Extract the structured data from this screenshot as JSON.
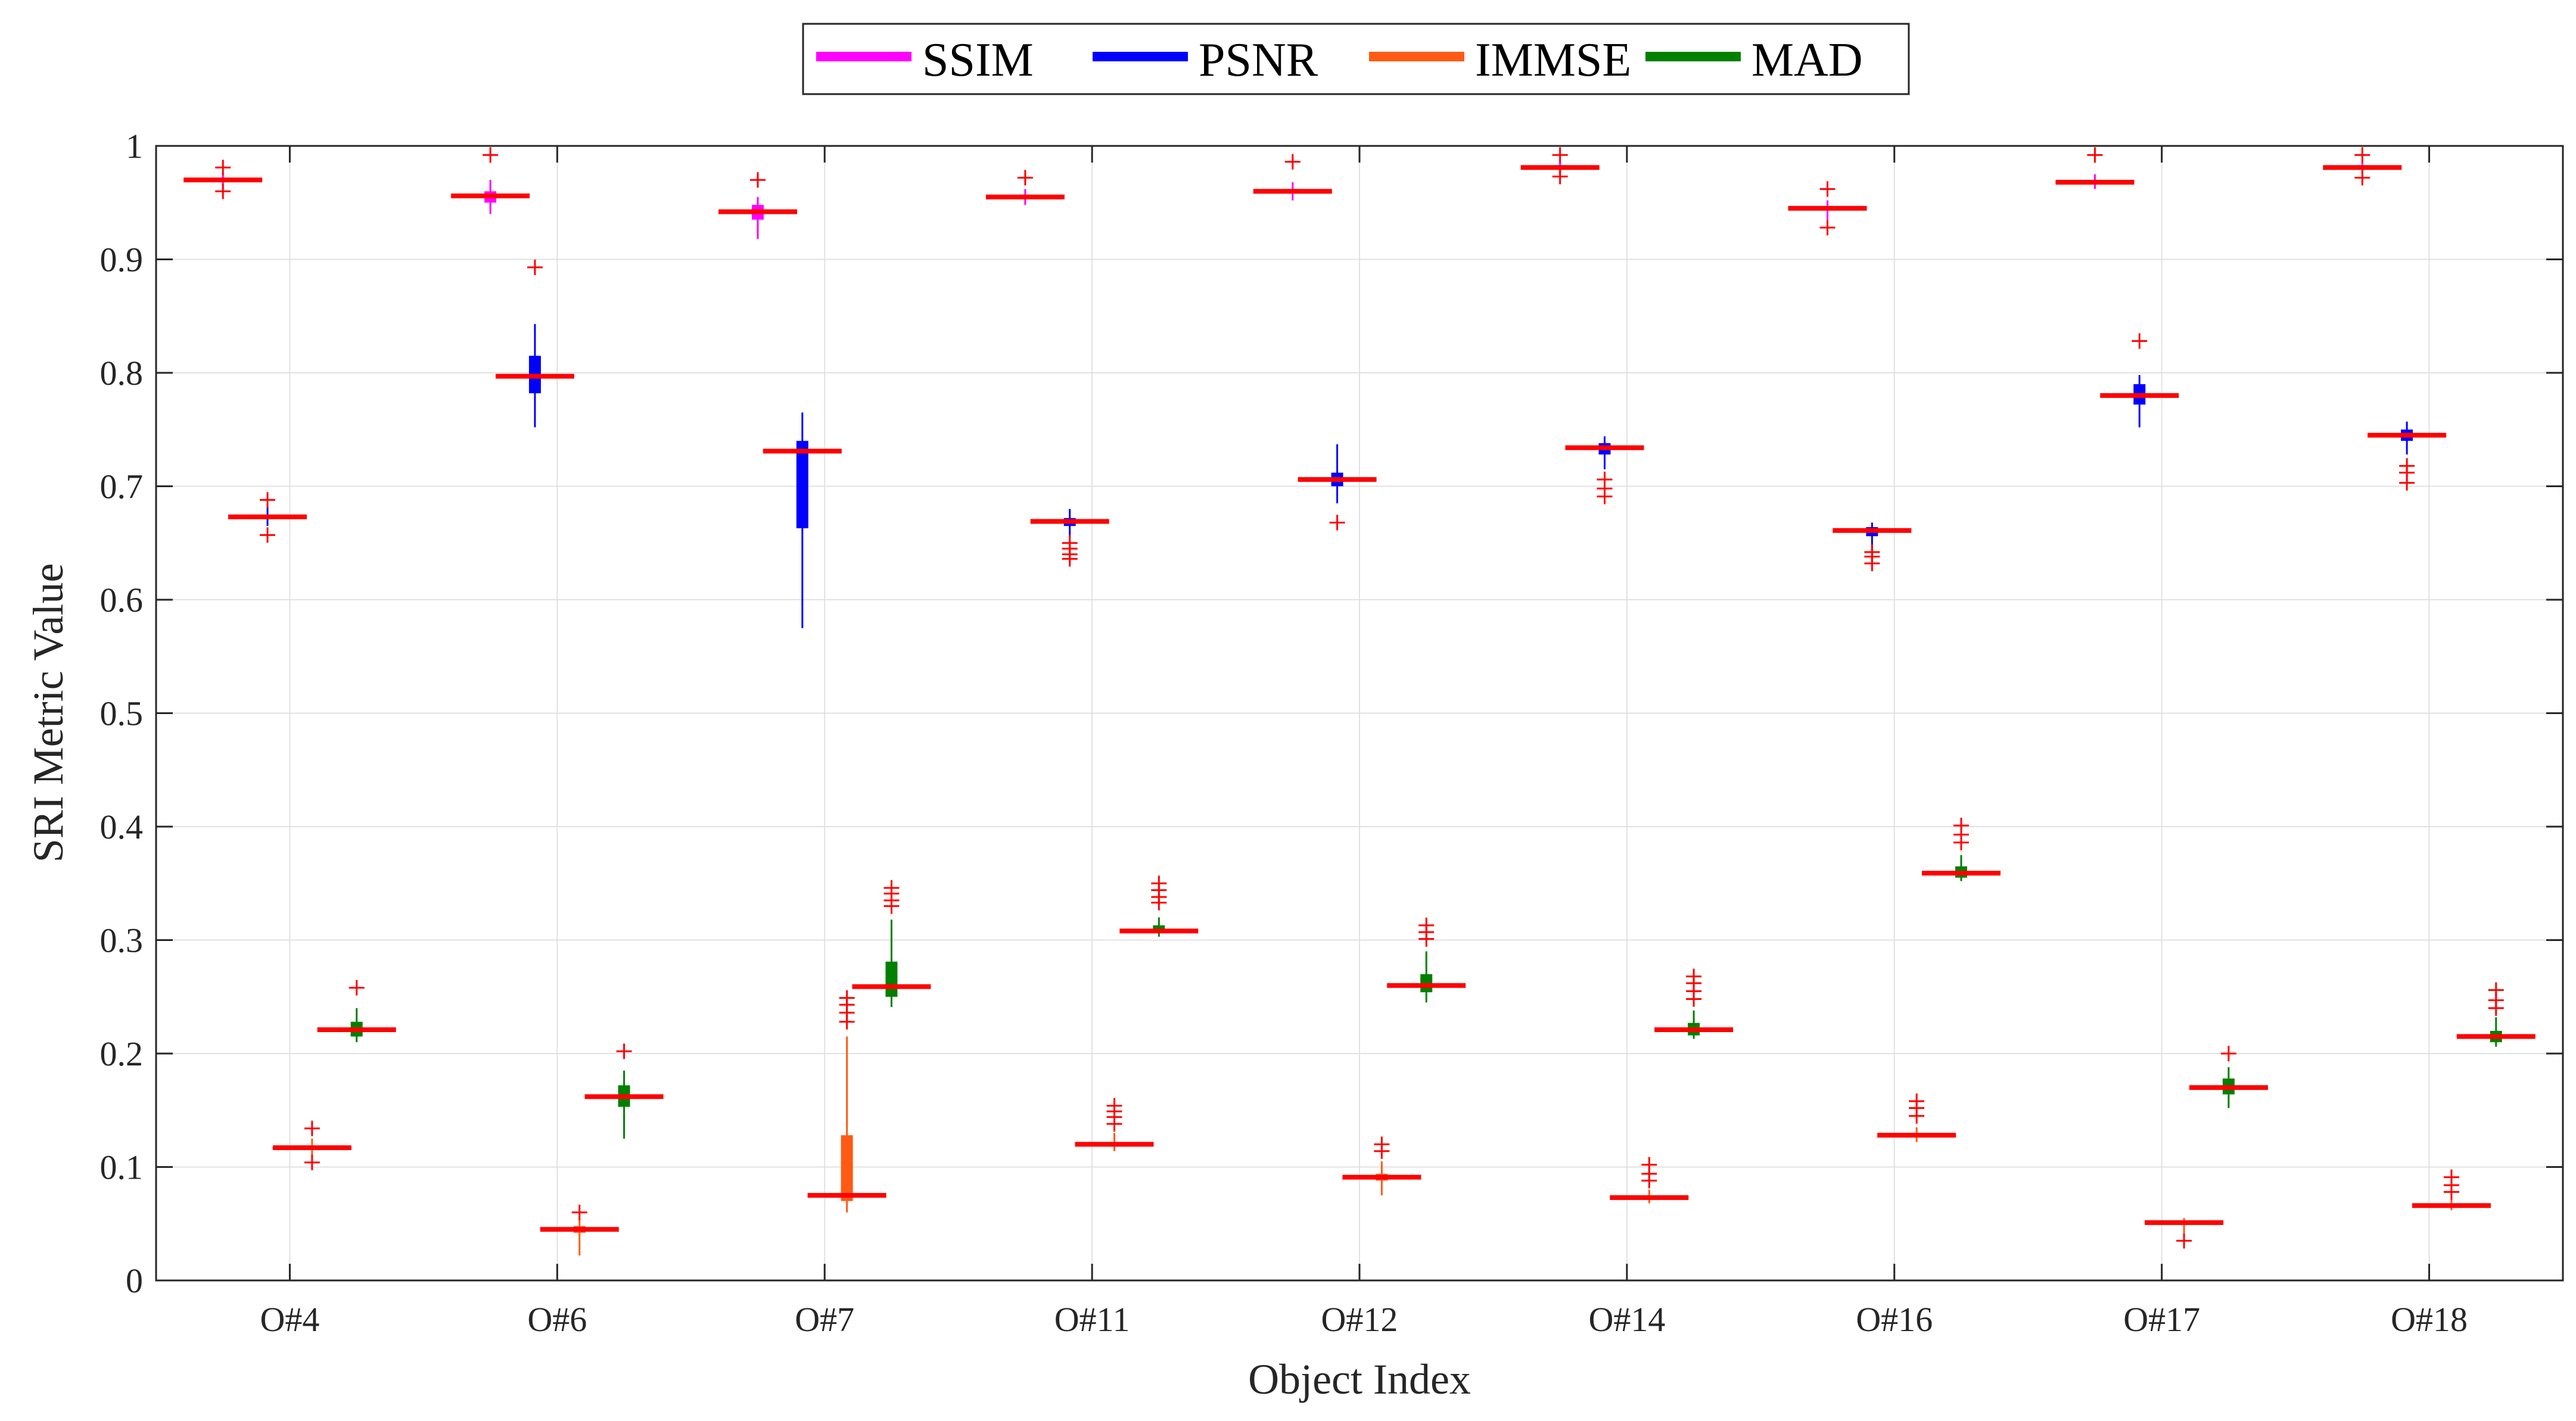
{
  "chart_data": {
    "type": "box",
    "title": "",
    "xlabel": "Object Index",
    "ylabel": "SRI Metric Value",
    "ylim": [
      0,
      1
    ],
    "yticks": [
      0,
      0.1,
      0.2,
      0.3,
      0.4,
      0.5,
      0.6,
      0.7,
      0.8,
      0.9,
      1
    ],
    "ytick_labels": [
      "0",
      "0.1",
      "0.2",
      "0.3",
      "0.4",
      "0.5",
      "0.6",
      "0.7",
      "0.8",
      "0.9",
      "1"
    ],
    "grid": true,
    "legend_position": "top-center",
    "median_color": "#ff0000",
    "outlier_color": "#ff0000",
    "categories": [
      "O#4",
      "O#6",
      "O#7",
      "O#11",
      "O#12",
      "O#14",
      "O#16",
      "O#17",
      "O#18"
    ],
    "series": [
      {
        "name": "SSIM",
        "color": "#ff00ff",
        "boxes": [
          {
            "median": 0.97,
            "q1": 0.968,
            "q3": 0.972,
            "whisker_low": 0.962,
            "whisker_high": 0.976,
            "outliers": [
              0.981,
              0.96
            ]
          },
          {
            "median": 0.956,
            "q1": 0.95,
            "q3": 0.96,
            "whisker_low": 0.94,
            "whisker_high": 0.97,
            "outliers": [
              0.992
            ]
          },
          {
            "median": 0.942,
            "q1": 0.935,
            "q3": 0.948,
            "whisker_low": 0.918,
            "whisker_high": 0.955,
            "outliers": [
              0.97
            ]
          },
          {
            "median": 0.955,
            "q1": 0.953,
            "q3": 0.957,
            "whisker_low": 0.948,
            "whisker_high": 0.962,
            "outliers": [
              0.972
            ]
          },
          {
            "median": 0.96,
            "q1": 0.958,
            "q3": 0.962,
            "whisker_low": 0.952,
            "whisker_high": 0.968,
            "outliers": [
              0.986
            ]
          },
          {
            "median": 0.981,
            "q1": 0.979,
            "q3": 0.983,
            "whisker_low": 0.975,
            "whisker_high": 0.986,
            "outliers": [
              0.992,
              0.973
            ]
          },
          {
            "median": 0.945,
            "q1": 0.943,
            "q3": 0.947,
            "whisker_low": 0.935,
            "whisker_high": 0.952,
            "outliers": [
              0.962,
              0.928
            ]
          },
          {
            "median": 0.968,
            "q1": 0.966,
            "q3": 0.97,
            "whisker_low": 0.962,
            "whisker_high": 0.975,
            "outliers": [
              0.992
            ]
          },
          {
            "median": 0.981,
            "q1": 0.979,
            "q3": 0.983,
            "whisker_low": 0.976,
            "whisker_high": 0.986,
            "outliers": [
              0.992,
              0.972
            ]
          }
        ]
      },
      {
        "name": "PSNR",
        "color": "#0000ff",
        "boxes": [
          {
            "median": 0.673,
            "q1": 0.671,
            "q3": 0.675,
            "whisker_low": 0.665,
            "whisker_high": 0.682,
            "outliers": [
              0.688,
              0.657
            ]
          },
          {
            "median": 0.797,
            "q1": 0.782,
            "q3": 0.815,
            "whisker_low": 0.752,
            "whisker_high": 0.843,
            "outliers": [
              0.893
            ]
          },
          {
            "median": 0.731,
            "q1": 0.663,
            "q3": 0.74,
            "whisker_low": 0.575,
            "whisker_high": 0.765,
            "outliers": []
          },
          {
            "median": 0.669,
            "q1": 0.665,
            "q3": 0.672,
            "whisker_low": 0.655,
            "whisker_high": 0.68,
            "outliers": [
              0.65,
              0.645,
              0.64,
              0.636
            ]
          },
          {
            "median": 0.706,
            "q1": 0.7,
            "q3": 0.712,
            "whisker_low": 0.685,
            "whisker_high": 0.737,
            "outliers": [
              0.668
            ]
          },
          {
            "median": 0.734,
            "q1": 0.728,
            "q3": 0.738,
            "whisker_low": 0.715,
            "whisker_high": 0.744,
            "outliers": [
              0.706,
              0.698,
              0.691
            ]
          },
          {
            "median": 0.661,
            "q1": 0.656,
            "q3": 0.664,
            "whisker_low": 0.645,
            "whisker_high": 0.668,
            "outliers": [
              0.642,
              0.638,
              0.632
            ]
          },
          {
            "median": 0.78,
            "q1": 0.772,
            "q3": 0.79,
            "whisker_low": 0.752,
            "whisker_high": 0.798,
            "outliers": [
              0.828
            ]
          },
          {
            "median": 0.745,
            "q1": 0.74,
            "q3": 0.75,
            "whisker_low": 0.728,
            "whisker_high": 0.757,
            "outliers": [
              0.718,
              0.712,
              0.703
            ]
          }
        ]
      },
      {
        "name": "IMMSE",
        "color": "#ff5a14",
        "boxes": [
          {
            "median": 0.117,
            "q1": 0.115,
            "q3": 0.119,
            "whisker_low": 0.11,
            "whisker_high": 0.125,
            "outliers": [
              0.134,
              0.104
            ]
          },
          {
            "median": 0.045,
            "q1": 0.042,
            "q3": 0.048,
            "whisker_low": 0.022,
            "whisker_high": 0.055,
            "outliers": [
              0.06
            ]
          },
          {
            "median": 0.075,
            "q1": 0.07,
            "q3": 0.128,
            "whisker_low": 0.06,
            "whisker_high": 0.215,
            "outliers": [
              0.228,
              0.236,
              0.243,
              0.249
            ]
          },
          {
            "median": 0.12,
            "q1": 0.118,
            "q3": 0.122,
            "whisker_low": 0.114,
            "whisker_high": 0.13,
            "outliers": [
              0.138,
              0.144,
              0.149,
              0.154
            ]
          },
          {
            "median": 0.091,
            "q1": 0.088,
            "q3": 0.094,
            "whisker_low": 0.075,
            "whisker_high": 0.105,
            "outliers": [
              0.114,
              0.12
            ]
          },
          {
            "median": 0.073,
            "q1": 0.071,
            "q3": 0.075,
            "whisker_low": 0.068,
            "whisker_high": 0.08,
            "outliers": [
              0.088,
              0.094,
              0.102
            ]
          },
          {
            "median": 0.128,
            "q1": 0.126,
            "q3": 0.13,
            "whisker_low": 0.122,
            "whisker_high": 0.135,
            "outliers": [
              0.145,
              0.152,
              0.158
            ]
          },
          {
            "median": 0.051,
            "q1": 0.049,
            "q3": 0.053,
            "whisker_low": 0.042,
            "whisker_high": 0.055,
            "outliers": [
              0.035
            ]
          },
          {
            "median": 0.066,
            "q1": 0.064,
            "q3": 0.068,
            "whisker_low": 0.062,
            "whisker_high": 0.072,
            "outliers": [
              0.078,
              0.084,
              0.091
            ]
          }
        ]
      },
      {
        "name": "MAD",
        "color": "#008000",
        "boxes": [
          {
            "median": 0.221,
            "q1": 0.215,
            "q3": 0.228,
            "whisker_low": 0.21,
            "whisker_high": 0.24,
            "outliers": [
              0.258
            ]
          },
          {
            "median": 0.162,
            "q1": 0.153,
            "q3": 0.172,
            "whisker_low": 0.125,
            "whisker_high": 0.185,
            "outliers": [
              0.202
            ]
          },
          {
            "median": 0.259,
            "q1": 0.25,
            "q3": 0.281,
            "whisker_low": 0.241,
            "whisker_high": 0.318,
            "outliers": [
              0.33,
              0.335,
              0.341,
              0.346
            ]
          },
          {
            "median": 0.308,
            "q1": 0.306,
            "q3": 0.313,
            "whisker_low": 0.303,
            "whisker_high": 0.32,
            "outliers": [
              0.333,
              0.338,
              0.344,
              0.35
            ]
          },
          {
            "median": 0.26,
            "q1": 0.254,
            "q3": 0.27,
            "whisker_low": 0.245,
            "whisker_high": 0.29,
            "outliers": [
              0.301,
              0.307,
              0.313
            ]
          },
          {
            "median": 0.221,
            "q1": 0.216,
            "q3": 0.227,
            "whisker_low": 0.213,
            "whisker_high": 0.238,
            "outliers": [
              0.248,
              0.255,
              0.262,
              0.268
            ]
          },
          {
            "median": 0.359,
            "q1": 0.355,
            "q3": 0.365,
            "whisker_low": 0.352,
            "whisker_high": 0.375,
            "outliers": [
              0.386,
              0.393,
              0.401
            ]
          },
          {
            "median": 0.17,
            "q1": 0.164,
            "q3": 0.178,
            "whisker_low": 0.152,
            "whisker_high": 0.188,
            "outliers": [
              0.2
            ]
          },
          {
            "median": 0.215,
            "q1": 0.21,
            "q3": 0.22,
            "whisker_low": 0.206,
            "whisker_high": 0.232,
            "outliers": [
              0.24,
              0.247,
              0.256
            ]
          }
        ]
      }
    ]
  }
}
